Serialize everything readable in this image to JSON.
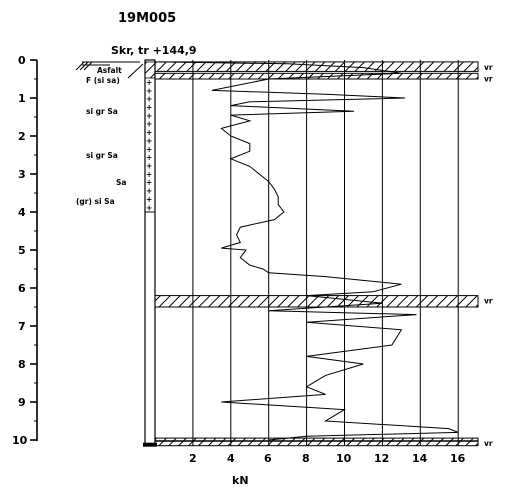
{
  "borehole_id": "19M005",
  "header_label": "Skr, tr +144,9",
  "depth_ticks": [
    "0",
    "1",
    "2",
    "3",
    "4",
    "5",
    "6",
    "7",
    "8",
    "9",
    "10"
  ],
  "force_ticks": [
    "2",
    "4",
    "6",
    "8",
    "10",
    "12",
    "14",
    "16"
  ],
  "force_unit": "kN",
  "soil_labels": {
    "asphalt": "Asfalt",
    "fill": "F (si sa)",
    "s1": "si gr Sa",
    "s2": "si gr Sa",
    "s3": "Sa",
    "s4": "(gr) si Sa"
  },
  "rotation_zones": [
    {
      "label": "vr",
      "from_m": 0.05,
      "to_m": 0.3
    },
    {
      "label": "vr",
      "from_m": 0.35,
      "to_m": 0.5
    },
    {
      "label": "vr",
      "from_m": 6.2,
      "to_m": 6.5
    },
    {
      "label": "vr",
      "from_m": 9.95,
      "to_m": 10.15
    }
  ],
  "chart_data": {
    "type": "line",
    "xlabel": "kN",
    "ylabel": "",
    "xlim": [
      0,
      17
    ],
    "ylim": [
      10.2,
      0
    ],
    "series": [
      {
        "values": [
          [
            0.2,
            0.05
          ],
          [
            7,
            0.1
          ],
          [
            11,
            0.2
          ],
          [
            13,
            0.35
          ],
          [
            6,
            0.5
          ],
          [
            3,
            0.8
          ],
          [
            9,
            0.9
          ],
          [
            13.2,
            1.0
          ],
          [
            5,
            1.1
          ],
          [
            4,
            1.2
          ],
          [
            10.5,
            1.35
          ],
          [
            4,
            1.45
          ],
          [
            5,
            1.6
          ],
          [
            3.5,
            1.8
          ],
          [
            4,
            2.0
          ],
          [
            5,
            2.2
          ],
          [
            5,
            2.4
          ],
          [
            4,
            2.6
          ],
          [
            5,
            2.8
          ],
          [
            5.5,
            3.0
          ],
          [
            6,
            3.2
          ],
          [
            6.3,
            3.4
          ],
          [
            6.5,
            3.6
          ],
          [
            6.5,
            3.8
          ],
          [
            6.8,
            4.0
          ],
          [
            6.3,
            4.2
          ],
          [
            4.5,
            4.4
          ],
          [
            4.3,
            4.6
          ],
          [
            4.5,
            4.8
          ],
          [
            3.5,
            4.95
          ],
          [
            4.8,
            5.0
          ],
          [
            4.5,
            5.2
          ],
          [
            5,
            5.4
          ],
          [
            5.7,
            5.5
          ],
          [
            6,
            5.6
          ],
          [
            9,
            5.7
          ],
          [
            13,
            5.9
          ],
          [
            11.5,
            6.1
          ],
          [
            8,
            6.2
          ],
          [
            12,
            6.4
          ],
          [
            6,
            6.6
          ],
          [
            13.8,
            6.7
          ],
          [
            8,
            6.9
          ],
          [
            13,
            7.1
          ],
          [
            12.5,
            7.5
          ],
          [
            8,
            7.8
          ],
          [
            11,
            8.0
          ],
          [
            9,
            8.3
          ],
          [
            8,
            8.6
          ],
          [
            9,
            8.8
          ],
          [
            3.5,
            9.0
          ],
          [
            10,
            9.2
          ],
          [
            9,
            9.5
          ],
          [
            15.5,
            9.7
          ],
          [
            16,
            9.8
          ],
          [
            8,
            9.9
          ],
          [
            6,
            10.0
          ],
          [
            6,
            10.05
          ]
        ]
      }
    ]
  }
}
